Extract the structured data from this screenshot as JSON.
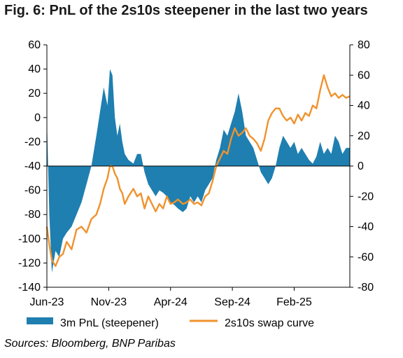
{
  "title": "Fig. 6: PnL of the 2s10s steepener in the last two years",
  "source": "Sources: Bloomberg, BNP Paribas",
  "chart_data": {
    "type": "area",
    "title": "Fig. 6: PnL of the 2s10s steepener in the last two years",
    "x_tick_labels": [
      "Jun-23",
      "Nov-23",
      "Apr-24",
      "Sep-24",
      "Feb-25"
    ],
    "x_tick_months": [
      0,
      5,
      10,
      15,
      20
    ],
    "x_range_months": [
      0,
      24.5
    ],
    "left_axis": {
      "ticks": [
        60,
        40,
        20,
        0,
        -20,
        -40,
        -60,
        -80,
        -100,
        -120,
        -140
      ],
      "ylim": [
        -140,
        60
      ]
    },
    "right_axis": {
      "ticks": [
        80,
        60,
        40,
        20,
        0,
        -20,
        -40,
        -60,
        -80
      ],
      "ylim": [
        -80,
        80
      ]
    },
    "baseline_left": -40,
    "legend": [
      "3m PnL (steepener)",
      "2s10s swap curve"
    ],
    "colors": {
      "pnl": "#1e7fb0",
      "curve": "#f0922d"
    },
    "series": [
      {
        "name": "3m PnL (steepener)",
        "axis": "left",
        "style": "area",
        "x_months": [
          0,
          0.2,
          0.4,
          0.7,
          1.0,
          1.3,
          1.6,
          2.0,
          2.4,
          2.8,
          3.2,
          3.6,
          4.0,
          4.3,
          4.6,
          4.9,
          5.1,
          5.3,
          5.5,
          5.7,
          5.9,
          6.1,
          6.3,
          6.6,
          7.0,
          7.3,
          7.6,
          7.9,
          8.2,
          8.5,
          8.8,
          9.1,
          9.4,
          9.7,
          10.0,
          10.3,
          10.6,
          11.0,
          11.3,
          11.6,
          11.9,
          12.2,
          12.5,
          12.8,
          13.1,
          13.4,
          13.7,
          14.0,
          14.3,
          14.6,
          14.9,
          15.2,
          15.5,
          15.8,
          16.1,
          16.4,
          16.7,
          17.0,
          17.3,
          17.6,
          17.9,
          18.2,
          18.5,
          18.8,
          19.1,
          19.4,
          19.7,
          20.0,
          20.3,
          20.6,
          20.9,
          21.2,
          21.5,
          21.8,
          22.1,
          22.4,
          22.7,
          23.0,
          23.3,
          23.6,
          23.9,
          24.2,
          24.5
        ],
        "values": [
          0,
          -80,
          -128,
          -110,
          -115,
          -100,
          -95,
          -90,
          -80,
          -70,
          -55,
          -40,
          -15,
          5,
          25,
          10,
          40,
          35,
          0,
          -15,
          -5,
          -20,
          -30,
          -35,
          -38,
          -30,
          -30,
          -45,
          -55,
          -60,
          -65,
          -60,
          -62,
          -65,
          -70,
          -72,
          -75,
          -78,
          -75,
          -65,
          -70,
          -65,
          -70,
          -60,
          -55,
          -50,
          -35,
          -25,
          -10,
          -15,
          -5,
          5,
          20,
          5,
          -15,
          -20,
          -25,
          -35,
          -45,
          -50,
          -55,
          -50,
          -40,
          -25,
          -15,
          -20,
          -25,
          -20,
          -30,
          -25,
          -30,
          -35,
          -38,
          -32,
          -20,
          -30,
          -25,
          -30,
          -15,
          -20,
          -30,
          -25,
          -25
        ]
      },
      {
        "name": "2s10s swap curve",
        "axis": "right",
        "style": "line",
        "x_months": [
          0,
          0.2,
          0.4,
          0.7,
          1.0,
          1.3,
          1.6,
          2.0,
          2.4,
          2.8,
          3.2,
          3.6,
          4.0,
          4.3,
          4.6,
          4.9,
          5.1,
          5.3,
          5.5,
          5.7,
          5.9,
          6.1,
          6.3,
          6.6,
          7.0,
          7.3,
          7.6,
          7.9,
          8.2,
          8.5,
          8.8,
          9.1,
          9.4,
          9.7,
          10.0,
          10.3,
          10.6,
          11.0,
          11.3,
          11.6,
          11.9,
          12.2,
          12.5,
          12.8,
          13.1,
          13.4,
          13.7,
          14.0,
          14.3,
          14.6,
          14.9,
          15.2,
          15.5,
          15.8,
          16.1,
          16.4,
          16.7,
          17.0,
          17.3,
          17.6,
          17.9,
          18.2,
          18.5,
          18.8,
          19.1,
          19.4,
          19.7,
          20.0,
          20.3,
          20.6,
          20.9,
          21.2,
          21.5,
          21.8,
          22.1,
          22.4,
          22.7,
          23.0,
          23.3,
          23.6,
          23.9,
          24.2,
          24.5
        ],
        "values": [
          -40,
          -52,
          -62,
          -66,
          -60,
          -58,
          -50,
          -55,
          -42,
          -40,
          -44,
          -35,
          -32,
          -25,
          -15,
          -8,
          0,
          0,
          -5,
          -8,
          -15,
          -18,
          -25,
          -20,
          -15,
          -20,
          -18,
          -28,
          -20,
          -25,
          -30,
          -25,
          -28,
          -20,
          -25,
          -24,
          -22,
          -25,
          -24,
          -22,
          -25,
          -24,
          -26,
          -20,
          -18,
          -10,
          0,
          5,
          10,
          8,
          18,
          25,
          20,
          22,
          25,
          20,
          18,
          15,
          10,
          18,
          30,
          35,
          38,
          38,
          33,
          30,
          32,
          28,
          34,
          30,
          35,
          33,
          40,
          38,
          50,
          60,
          52,
          46,
          48,
          45,
          47,
          45,
          46
        ]
      }
    ]
  }
}
